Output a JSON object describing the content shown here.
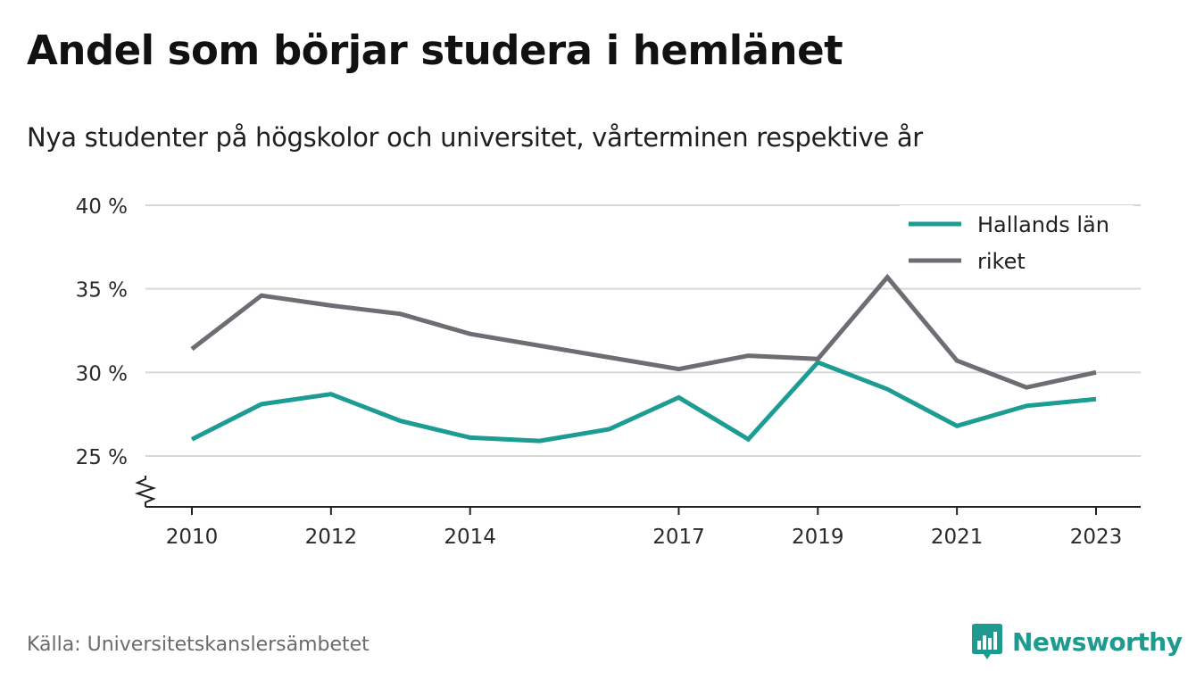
{
  "title": "Andel som börjar studera i hemlänet",
  "subtitle": "Nya studenter på högskolor och universitet, vårterminen respektive år",
  "source": "Källa: Universitetskanslersämbetet",
  "brand": {
    "name": "Newsworthy",
    "icon": "newsworthy-logo-icon"
  },
  "colors": {
    "halland": "#1c9c92",
    "riket": "#6e6d73",
    "grid": "#d6d6d6",
    "axis": "#222222",
    "brand": "#1e9a8e"
  },
  "chart_data": {
    "type": "line",
    "x": [
      2010,
      2011,
      2012,
      2013,
      2014,
      2015,
      2016,
      2017,
      2018,
      2019,
      2020,
      2021,
      2022,
      2023
    ],
    "series": [
      {
        "name": "Hallands län",
        "color": "#1c9c92",
        "values": [
          26.0,
          28.1,
          28.7,
          27.1,
          26.1,
          25.9,
          26.6,
          28.5,
          26.0,
          30.6,
          29.0,
          26.8,
          28.0,
          28.4
        ]
      },
      {
        "name": "riket",
        "color": "#6e6d73",
        "values": [
          31.4,
          34.6,
          34.0,
          33.5,
          32.3,
          31.6,
          30.9,
          30.2,
          31.0,
          30.8,
          35.7,
          30.7,
          29.1,
          30.0
        ]
      }
    ],
    "ylim": [
      22,
      40
    ],
    "yticks": [
      25,
      30,
      35,
      40
    ],
    "ytick_labels": [
      "25 %",
      "30 %",
      "35 %",
      "40 %"
    ],
    "xticks": [
      2010,
      2012,
      2014,
      2017,
      2019,
      2021,
      2023
    ],
    "xtick_labels": [
      "2010",
      "2012",
      "2014",
      "2017",
      "2019",
      "2021",
      "2023"
    ],
    "axis_break": true,
    "grid": true,
    "legend": "top-right"
  }
}
